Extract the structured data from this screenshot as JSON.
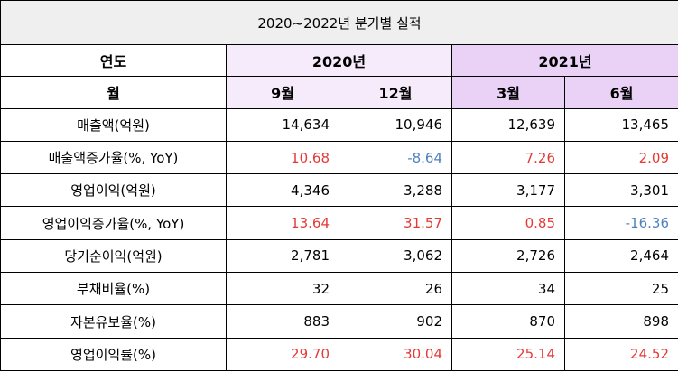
{
  "title": "2020~2022년 분기별 실적",
  "header": {
    "year_label": "연도",
    "month_label": "월",
    "years": [
      "2020년",
      "2021년"
    ],
    "months": [
      "9월",
      "12월",
      "3월",
      "6월"
    ]
  },
  "rows": [
    {
      "label": "매출액(억원)",
      "values": [
        "14,634",
        "10,946",
        "12,639",
        "13,465"
      ]
    },
    {
      "label": "매출액증가율(%, YoY)",
      "values": [
        "10.68",
        "-8.64",
        "7.26",
        "2.09"
      ]
    },
    {
      "label": "영업이익(억원)",
      "values": [
        "4,346",
        "3,288",
        "3,177",
        "3,301"
      ]
    },
    {
      "label": "영업이익증가율(%, YoY)",
      "values": [
        "13.64",
        "31.57",
        "0.85",
        "-16.36"
      ]
    },
    {
      "label": "당기순이익(억원)",
      "values": [
        "2,781",
        "3,062",
        "2,726",
        "2,464"
      ]
    },
    {
      "label": "부채비율(%)",
      "values": [
        "32",
        "26",
        "34",
        "25"
      ]
    },
    {
      "label": "자본유보율(%)",
      "values": [
        "883",
        "902",
        "870",
        "898"
      ]
    },
    {
      "label": "영업이익률(%)",
      "values": [
        "29.70",
        "30.04",
        "25.14",
        "24.52"
      ]
    }
  ],
  "colors": {
    "positive": "#e53935",
    "negative": "#4f81bd",
    "title_bg": "#efefef",
    "year_2020_bg": "#f6ebfb",
    "year_2021_bg": "#ead2f6"
  }
}
